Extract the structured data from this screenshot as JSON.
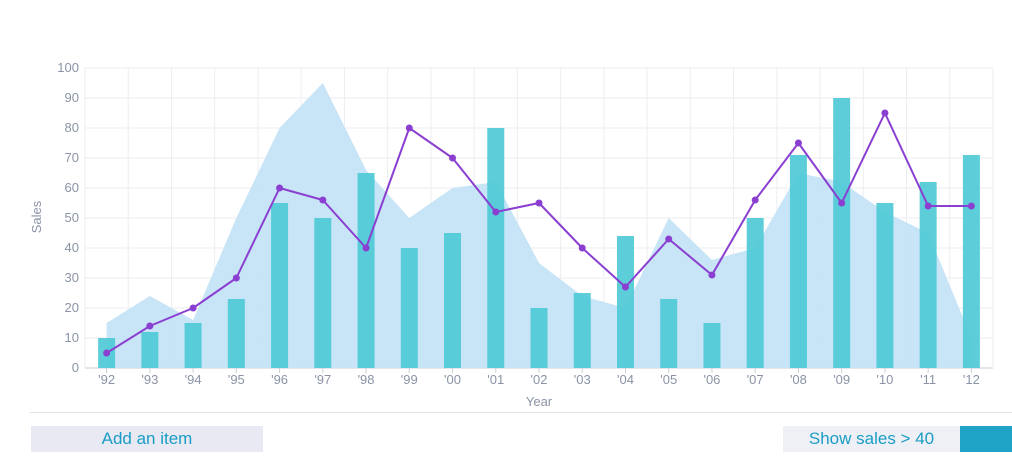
{
  "chart_data": {
    "type": "bar",
    "title": "",
    "xlabel": "Year",
    "ylabel": "Sales",
    "ylim": [
      0,
      100
    ],
    "yticks": [
      0,
      10,
      20,
      30,
      40,
      50,
      60,
      70,
      80,
      90,
      100
    ],
    "grid": true,
    "categories": [
      "'92",
      "'93",
      "'94",
      "'95",
      "'96",
      "'97",
      "'98",
      "'99",
      "'00",
      "'01",
      "'02",
      "'03",
      "'04",
      "'05",
      "'06",
      "'07",
      "'08",
      "'09",
      "'10",
      "'11",
      "'12"
    ],
    "series": [
      {
        "kind": "area",
        "color": "#c5e3f7",
        "values": [
          15,
          24,
          16,
          50,
          80,
          95,
          66,
          50,
          60,
          62,
          35,
          24,
          20,
          50,
          36,
          40,
          65,
          62,
          52,
          45,
          10
        ]
      },
      {
        "kind": "bar",
        "color": "#4fcad6",
        "values": [
          10,
          12,
          15,
          23,
          55,
          50,
          65,
          40,
          45,
          80,
          20,
          25,
          44,
          23,
          15,
          50,
          71,
          90,
          55,
          62,
          71
        ]
      },
      {
        "kind": "line",
        "color": "#8a3fd1",
        "values": [
          5,
          14,
          20,
          30,
          60,
          56,
          40,
          80,
          70,
          52,
          55,
          40,
          27,
          43,
          31,
          56,
          75,
          55,
          85,
          54,
          54
        ]
      }
    ]
  },
  "controls": {
    "add_label": "Add an item",
    "filter_label": "Show sales > 40"
  }
}
